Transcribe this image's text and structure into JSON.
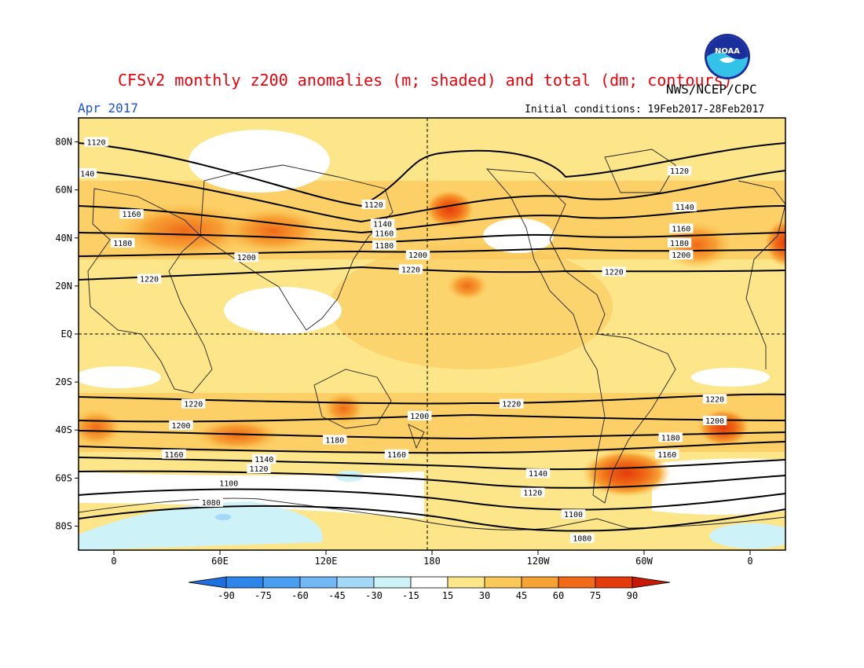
{
  "header": {
    "title": "CFSv2 monthly z200 anomalies (m; shaded) and total (dm; contours)",
    "agency": "NWS/NCEP/CPC",
    "period": "Apr 2017",
    "initial_conditions": "Initial conditions: 19Feb2017-28Feb2017",
    "logo_text": "NOAA"
  },
  "map": {
    "projection": "cylindrical equidistant",
    "lon_range": [
      -20,
      380
    ],
    "lat_range": [
      -90,
      90
    ],
    "lat_ticks": [
      {
        "lat": 80,
        "label": "80N"
      },
      {
        "lat": 60,
        "label": "60N"
      },
      {
        "lat": 40,
        "label": "40N"
      },
      {
        "lat": 20,
        "label": "20N"
      },
      {
        "lat": 0,
        "label": "EQ"
      },
      {
        "lat": -20,
        "label": "20S"
      },
      {
        "lat": -40,
        "label": "40S"
      },
      {
        "lat": -60,
        "label": "60S"
      },
      {
        "lat": -80,
        "label": "80S"
      }
    ],
    "lon_ticks": [
      {
        "lon": 0,
        "label": "0"
      },
      {
        "lon": 60,
        "label": "60E"
      },
      {
        "lon": 120,
        "label": "120E"
      },
      {
        "lon": 180,
        "label": "180"
      },
      {
        "lon": 240,
        "label": "120W"
      },
      {
        "lon": 300,
        "label": "60W"
      },
      {
        "lon": 360,
        "label": "0"
      }
    ],
    "dashed_lines": "equator and 180 meridian"
  },
  "colorbar": {
    "levels": [
      "-90",
      "-75",
      "-60",
      "-45",
      "-30",
      "-15",
      "15",
      "30",
      "45",
      "60",
      "75",
      "90"
    ],
    "colors": [
      "#1e6fe0",
      "#2f86ea",
      "#4a9ef0",
      "#73b8f5",
      "#a3d8f7",
      "#cdf2f8",
      "#ffffff",
      "#fde58a",
      "#fbc85a",
      "#f7a235",
      "#f06a17",
      "#e53b0a",
      "#c81907"
    ]
  },
  "chart_data": {
    "type": "heatmap",
    "title": "CFSv2 monthly z200 anomalies (m; shaded) and total (dm; contours)",
    "contour_levels_dm": [
      1080,
      1100,
      1120,
      1140,
      1160,
      1180,
      1200,
      1220
    ],
    "contour_labels": [
      {
        "label": "1120",
        "lon": -10,
        "lat": 80
      },
      {
        "label": "140",
        "lon": -15,
        "lat": 67
      },
      {
        "label": "1160",
        "lon": 10,
        "lat": 50
      },
      {
        "label": "1180",
        "lon": 5,
        "lat": 38
      },
      {
        "label": "1200",
        "lon": 75,
        "lat": 32
      },
      {
        "label": "1220",
        "lon": 20,
        "lat": 23
      },
      {
        "label": "1120",
        "lon": 147,
        "lat": 54
      },
      {
        "label": "1140",
        "lon": 152,
        "lat": 46
      },
      {
        "label": "1160",
        "lon": 153,
        "lat": 42
      },
      {
        "label": "1180",
        "lon": 153,
        "lat": 37
      },
      {
        "label": "1200",
        "lon": 172,
        "lat": 33
      },
      {
        "label": "1220",
        "lon": 168,
        "lat": 27
      },
      {
        "label": "1120",
        "lon": 320,
        "lat": 68
      },
      {
        "label": "1140",
        "lon": 323,
        "lat": 53
      },
      {
        "label": "1160",
        "lon": 321,
        "lat": 44
      },
      {
        "label": "1180",
        "lon": 320,
        "lat": 38
      },
      {
        "label": "1200",
        "lon": 321,
        "lat": 33
      },
      {
        "label": "1220",
        "lon": 283,
        "lat": 26
      },
      {
        "label": "1220",
        "lon": 45,
        "lat": -29
      },
      {
        "label": "1200",
        "lon": 38,
        "lat": -38
      },
      {
        "label": "1160",
        "lon": 34,
        "lat": -50
      },
      {
        "label": "1140",
        "lon": 85,
        "lat": -52
      },
      {
        "label": "1120",
        "lon": 82,
        "lat": -56
      },
      {
        "label": "1100",
        "lon": 65,
        "lat": -62
      },
      {
        "label": "1080",
        "lon": 55,
        "lat": -70
      },
      {
        "label": "1180",
        "lon": 125,
        "lat": -44
      },
      {
        "label": "1200",
        "lon": 173,
        "lat": -34
      },
      {
        "label": "1160",
        "lon": 160,
        "lat": -50
      },
      {
        "label": "1220",
        "lon": 225,
        "lat": -29
      },
      {
        "label": "1180",
        "lon": 315,
        "lat": -43
      },
      {
        "label": "1160",
        "lon": 313,
        "lat": -50
      },
      {
        "label": "1140",
        "lon": 240,
        "lat": -58
      },
      {
        "label": "1120",
        "lon": 237,
        "lat": -66
      },
      {
        "label": "1100",
        "lon": 260,
        "lat": -75
      },
      {
        "label": "1080",
        "lon": 265,
        "lat": -85
      },
      {
        "label": "1220",
        "lon": 340,
        "lat": -27
      },
      {
        "label": "1200",
        "lon": 340,
        "lat": -36
      }
    ],
    "anomaly_regions": [
      {
        "lon": 40,
        "lat": 43,
        "rx": 40,
        "ry": 12,
        "value": 60
      },
      {
        "lon": 90,
        "lat": 43,
        "rx": 30,
        "ry": 10,
        "value": 60
      },
      {
        "lon": 190,
        "lat": 52,
        "rx": 14,
        "ry": 8,
        "value": 75
      },
      {
        "lon": 330,
        "lat": 37,
        "rx": 20,
        "ry": 10,
        "value": 60
      },
      {
        "lon": 380,
        "lat": 38,
        "rx": 12,
        "ry": 10,
        "value": 75
      },
      {
        "lon": 200,
        "lat": 20,
        "rx": 12,
        "ry": 6,
        "value": 60
      },
      {
        "lon": 130,
        "lat": -31,
        "rx": 12,
        "ry": 7,
        "value": 60
      },
      {
        "lon": 70,
        "lat": -42,
        "rx": 25,
        "ry": 7,
        "value": 60
      },
      {
        "lon": -10,
        "lat": -39,
        "rx": 15,
        "ry": 8,
        "value": 60
      },
      {
        "lon": 290,
        "lat": -58,
        "rx": 25,
        "ry": 10,
        "value": 75
      },
      {
        "lon": 345,
        "lat": -39,
        "rx": 15,
        "ry": 8,
        "value": 75
      }
    ]
  }
}
